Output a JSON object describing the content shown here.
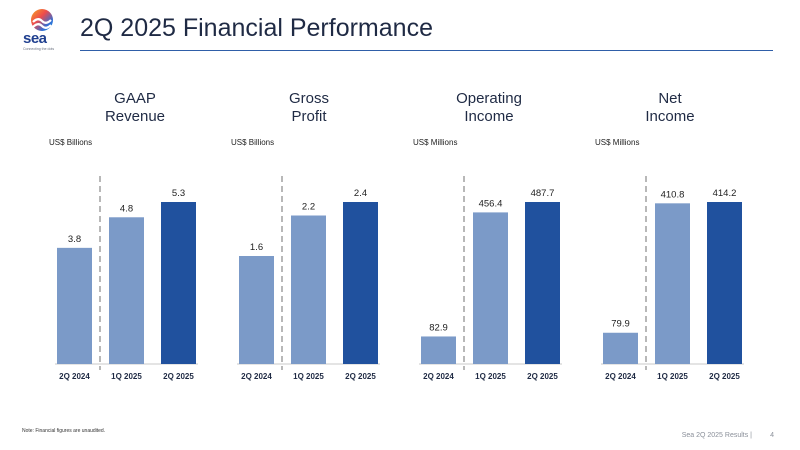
{
  "header": {
    "logo_text": "sea",
    "logo_tagline": "Connecting the dots",
    "title": "2Q 2025 Financial Performance"
  },
  "panels": [
    {
      "title_line1": "GAAP",
      "title_line2": "Revenue",
      "unit": "US$ Billions"
    },
    {
      "title_line1": "Gross",
      "title_line2": "Profit",
      "unit": "US$ Billions"
    },
    {
      "title_line1": "Operating",
      "title_line2": "Income",
      "unit": "US$ Millions"
    },
    {
      "title_line1": "Net",
      "title_line2": "Income",
      "unit": "US$ Millions"
    }
  ],
  "footer": {
    "note": "Note: Financial figures are unaudited.",
    "source": "Sea 2Q 2025 Results |",
    "page": "4"
  },
  "colors": {
    "light_bar": "#7b9ac8",
    "dark_bar": "#20519e",
    "divider": "#b8b8b8",
    "title_rule": "#2f5ea8"
  },
  "chart_data": [
    {
      "type": "bar",
      "title": "GAAP Revenue",
      "ylabel": "US$ Billions",
      "categories": [
        "2Q 2024",
        "1Q 2025",
        "2Q 2025"
      ],
      "values": [
        3.8,
        4.8,
        5.3
      ],
      "labels": [
        "3.8",
        "4.8",
        "5.3"
      ],
      "ylim": [
        0,
        5.3
      ]
    },
    {
      "type": "bar",
      "title": "Gross Profit",
      "ylabel": "US$ Billions",
      "categories": [
        "2Q 2024",
        "1Q 2025",
        "2Q 2025"
      ],
      "values": [
        1.6,
        2.2,
        2.4
      ],
      "labels": [
        "1.6",
        "2.2",
        "2.4"
      ],
      "ylim": [
        0,
        2.4
      ]
    },
    {
      "type": "bar",
      "title": "Operating Income",
      "ylabel": "US$ Millions",
      "categories": [
        "2Q 2024",
        "1Q 2025",
        "2Q 2025"
      ],
      "values": [
        82.9,
        456.4,
        487.7
      ],
      "labels": [
        "82.9",
        "456.4",
        "487.7"
      ],
      "ylim": [
        0,
        487.7
      ]
    },
    {
      "type": "bar",
      "title": "Net Income",
      "ylabel": "US$ Millions",
      "categories": [
        "2Q 2024",
        "1Q 2025",
        "2Q 2025"
      ],
      "values": [
        79.9,
        410.8,
        414.2
      ],
      "labels": [
        "79.9",
        "410.8",
        "414.2"
      ],
      "ylim": [
        0,
        414.2
      ]
    }
  ]
}
